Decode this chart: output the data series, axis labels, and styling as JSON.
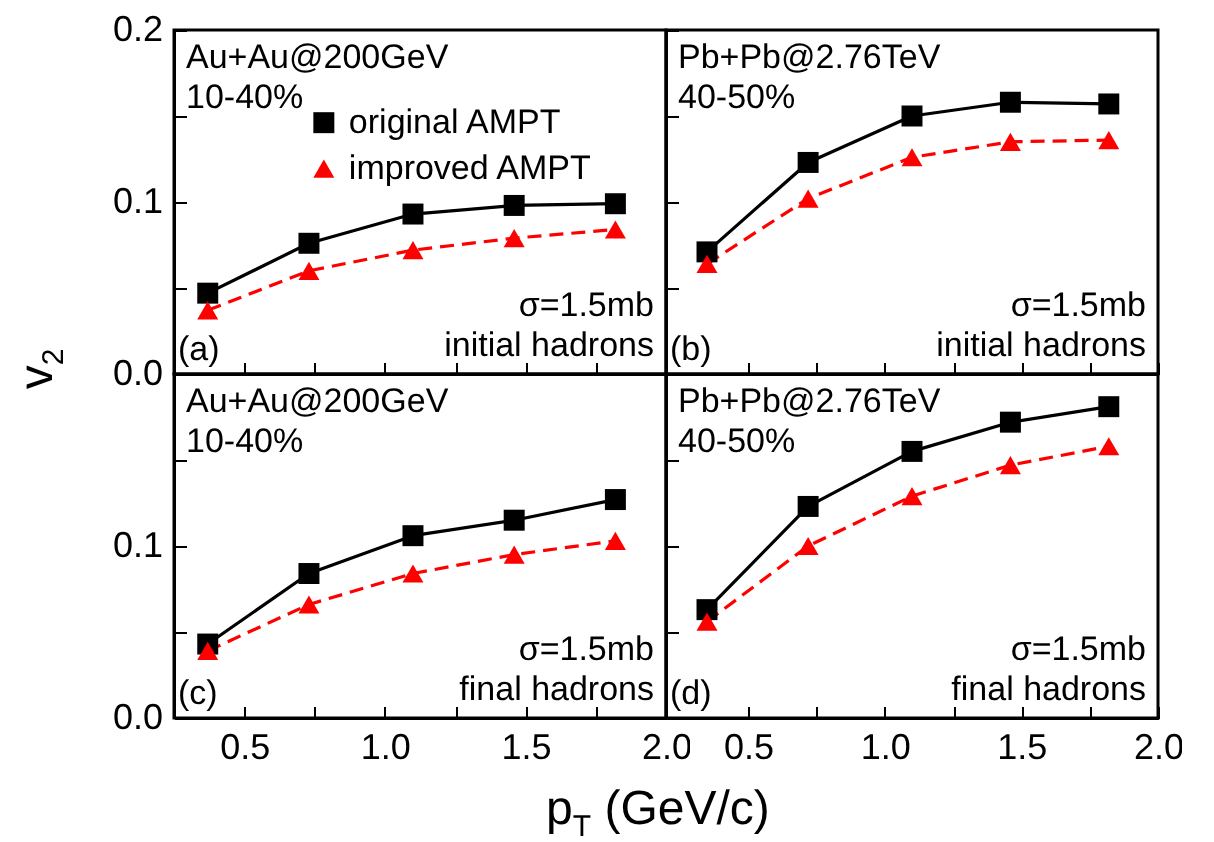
{
  "chart_data": [
    {
      "type": "line",
      "x": [
        0.37,
        0.73,
        1.1,
        1.46,
        1.82
      ],
      "xlim": [
        0.25,
        2.0
      ],
      "xticks": [
        0.5,
        0.75,
        1,
        1.25,
        1.5,
        1.75,
        2
      ],
      "ylim": [
        0,
        0.2
      ],
      "yticks": [
        {
          "value": 0,
          "label": "0.0"
        },
        {
          "value": 0.05,
          "label": null
        },
        0.1,
        {
          "value": 0.15,
          "label": null
        },
        0.2
      ],
      "tick_labels": "y",
      "ylabel": "v$_{2}$",
      "legend": "top",
      "annotations": [
        "Au+Au@200GeV",
        "10-40%",
        "σ=1.5mb",
        "initial hadrons",
        "(a)"
      ],
      "series": [
        {
          "name": "original AMPT",
          "color": "#000000",
          "line_style": "solid",
          "marker": "square",
          "values": [
            0.047,
            0.076,
            0.093,
            0.098,
            0.099
          ]
        },
        {
          "name": "improved AMPT",
          "color": "#ff0000",
          "line_style": "dashed",
          "marker": "triangle",
          "values": [
            0.037,
            0.06,
            0.072,
            0.079,
            0.084
          ]
        }
      ]
    },
    {
      "type": "line",
      "x": [
        0.35,
        0.72,
        1.1,
        1.46,
        1.82
      ],
      "xlim": [
        0.2,
        2.0
      ],
      "xticks": [
        0.5,
        0.75,
        1,
        1.25,
        1.5,
        1.75,
        2
      ],
      "ylim": [
        0,
        0.2
      ],
      "yticks": [
        0,
        0.05,
        0.1,
        0.15,
        0.2
      ],
      "tick_labels": false,
      "annotations": [
        "Pb+Pb@2.76TeV",
        "40-50%",
        "σ=1.5mb",
        "initial hadrons",
        "(b)"
      ],
      "series": [
        {
          "color": "#000000",
          "line_style": "solid",
          "marker": "square",
          "values": [
            0.071,
            0.123,
            0.15,
            0.158,
            0.157
          ]
        },
        {
          "color": "#ff0000",
          "line_style": "dashed",
          "marker": "triangle",
          "values": [
            0.064,
            0.102,
            0.126,
            0.135,
            0.136
          ]
        }
      ]
    },
    {
      "type": "line",
      "x": [
        0.37,
        0.73,
        1.1,
        1.46,
        1.82
      ],
      "xlim": [
        0.25,
        2.0
      ],
      "xticks": [
        0.5,
        {
          "value": 0.75,
          "label": null
        },
        {
          "value": 1,
          "label": "1.0"
        },
        {
          "value": 1.25,
          "label": null
        },
        1.5,
        {
          "value": 1.75,
          "label": null
        },
        {
          "value": 2,
          "label": "2.0"
        }
      ],
      "ylim": [
        0,
        0.2
      ],
      "yticks": [
        {
          "value": 0,
          "label": "0.0"
        },
        {
          "value": 0.05,
          "label": null
        },
        0.1,
        {
          "value": 0.15,
          "label": null
        },
        {
          "value": 0.2,
          "label": null
        }
      ],
      "xlabel": "p$_{T}$ (GeV/c)",
      "annotations": [
        "Au+Au@200GeV",
        "10-40%",
        "σ=1.5mb",
        "final hadrons",
        "(c)"
      ],
      "series": [
        {
          "color": "#000000",
          "line_style": "solid",
          "marker": "square",
          "values": [
            0.043,
            0.084,
            0.106,
            0.115,
            0.127
          ]
        },
        {
          "color": "#ff0000",
          "line_style": "dashed",
          "marker": "triangle",
          "values": [
            0.039,
            0.066,
            0.084,
            0.095,
            0.103
          ]
        }
      ]
    },
    {
      "type": "line",
      "x": [
        0.35,
        0.72,
        1.1,
        1.46,
        1.82
      ],
      "xlim": [
        0.2,
        2.0
      ],
      "xticks": [
        0.5,
        {
          "value": 0.75,
          "label": null
        },
        {
          "value": 1,
          "label": "1.0"
        },
        {
          "value": 1.25,
          "label": null
        },
        1.5,
        {
          "value": 1.75,
          "label": null
        },
        {
          "value": 2,
          "label": "2.0"
        }
      ],
      "ylim": [
        0,
        0.2
      ],
      "yticks": [
        0,
        0.05,
        0.1,
        0.15,
        0.2
      ],
      "tick_labels": "x",
      "annotations": [
        "Pb+Pb@2.76TeV",
        "40-50%",
        "σ=1.5mb",
        "final hadrons",
        "(d)"
      ],
      "series": [
        {
          "color": "#000000",
          "line_style": "solid",
          "marker": "square",
          "values": [
            0.063,
            0.123,
            0.155,
            0.172,
            0.181
          ]
        },
        {
          "color": "#ff0000",
          "line_style": "dashed",
          "marker": "triangle",
          "values": [
            0.056,
            0.1,
            0.129,
            0.147,
            0.158
          ]
        }
      ]
    }
  ]
}
